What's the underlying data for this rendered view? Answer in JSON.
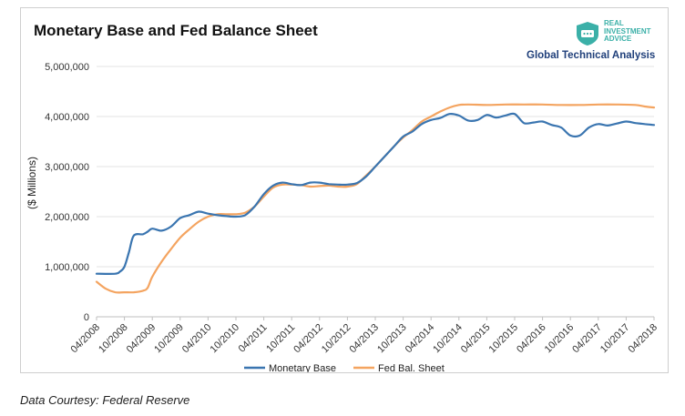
{
  "logo": {
    "lines": [
      "REAL",
      "INVESTMENT",
      "ADVICE"
    ],
    "color": "#3bb0a8"
  },
  "tagline": "Global Technical Analysis",
  "caption": "Data Courtesy: Federal Reserve",
  "chart_data": {
    "type": "line",
    "title": "Monetary Base and Fed Balance Sheet",
    "ylabel": "($ Millions)",
    "xlabel": "",
    "ylim": [
      0,
      5000000
    ],
    "yticks": [
      0,
      1000000,
      2000000,
      3000000,
      4000000,
      5000000
    ],
    "ytick_labels": [
      "0",
      "1,000,000",
      "2,000,000",
      "3,000,000",
      "4,000,000",
      "5,000,000"
    ],
    "xlim": [
      "2008-04",
      "2018-04"
    ],
    "xticks": [
      "2008-04",
      "2008-10",
      "2009-04",
      "2009-10",
      "2010-04",
      "2010-10",
      "2011-04",
      "2011-10",
      "2012-04",
      "2012-10",
      "2013-04",
      "2013-10",
      "2014-04",
      "2014-10",
      "2015-04",
      "2015-10",
      "2016-04",
      "2016-10",
      "2017-04",
      "2017-10",
      "2018-04"
    ],
    "xtick_labels": [
      "04/2008",
      "10/2008",
      "04/2009",
      "10/2009",
      "04/2010",
      "10/2010",
      "04/2011",
      "10/2011",
      "04/2012",
      "10/2012",
      "04/2013",
      "10/2013",
      "04/2014",
      "10/2014",
      "04/2015",
      "10/2015",
      "04/2016",
      "10/2016",
      "04/2017",
      "10/2017",
      "04/2018"
    ],
    "grid": true,
    "legend_position": "bottom",
    "series": [
      {
        "name": "Monetary Base",
        "color": "#3a75b0",
        "points": [
          [
            "2008-04",
            860000
          ],
          [
            "2008-08",
            860000
          ],
          [
            "2008-09",
            900000
          ],
          [
            "2008-10",
            1000000
          ],
          [
            "2008-11",
            1300000
          ],
          [
            "2008-12",
            1620000
          ],
          [
            "2009-02",
            1650000
          ],
          [
            "2009-03",
            1700000
          ],
          [
            "2009-04",
            1760000
          ],
          [
            "2009-06",
            1720000
          ],
          [
            "2009-08",
            1800000
          ],
          [
            "2009-10",
            1970000
          ],
          [
            "2009-12",
            2030000
          ],
          [
            "2010-02",
            2100000
          ],
          [
            "2010-04",
            2060000
          ],
          [
            "2010-06",
            2030000
          ],
          [
            "2010-08",
            2010000
          ],
          [
            "2010-10",
            2000000
          ],
          [
            "2010-12",
            2030000
          ],
          [
            "2011-02",
            2200000
          ],
          [
            "2011-04",
            2450000
          ],
          [
            "2011-06",
            2620000
          ],
          [
            "2011-08",
            2680000
          ],
          [
            "2011-10",
            2650000
          ],
          [
            "2011-12",
            2630000
          ],
          [
            "2012-02",
            2680000
          ],
          [
            "2012-04",
            2680000
          ],
          [
            "2012-06",
            2650000
          ],
          [
            "2012-08",
            2640000
          ],
          [
            "2012-10",
            2640000
          ],
          [
            "2012-12",
            2670000
          ],
          [
            "2013-02",
            2800000
          ],
          [
            "2013-04",
            3000000
          ],
          [
            "2013-06",
            3200000
          ],
          [
            "2013-08",
            3400000
          ],
          [
            "2013-10",
            3600000
          ],
          [
            "2013-12",
            3700000
          ],
          [
            "2014-02",
            3850000
          ],
          [
            "2014-04",
            3930000
          ],
          [
            "2014-06",
            3970000
          ],
          [
            "2014-08",
            4050000
          ],
          [
            "2014-10",
            4020000
          ],
          [
            "2014-12",
            3920000
          ],
          [
            "2015-02",
            3930000
          ],
          [
            "2015-04",
            4030000
          ],
          [
            "2015-06",
            3980000
          ],
          [
            "2015-08",
            4020000
          ],
          [
            "2015-10",
            4050000
          ],
          [
            "2015-12",
            3870000
          ],
          [
            "2016-02",
            3880000
          ],
          [
            "2016-04",
            3900000
          ],
          [
            "2016-06",
            3830000
          ],
          [
            "2016-08",
            3780000
          ],
          [
            "2016-10",
            3620000
          ],
          [
            "2016-12",
            3620000
          ],
          [
            "2017-02",
            3780000
          ],
          [
            "2017-04",
            3850000
          ],
          [
            "2017-06",
            3820000
          ],
          [
            "2017-08",
            3860000
          ],
          [
            "2017-10",
            3900000
          ],
          [
            "2017-12",
            3870000
          ],
          [
            "2018-02",
            3850000
          ],
          [
            "2018-04",
            3830000
          ]
        ]
      },
      {
        "name": "Fed Bal. Sheet",
        "color": "#f4a460",
        "points": [
          [
            "2008-04",
            700000
          ],
          [
            "2008-06",
            560000
          ],
          [
            "2008-08",
            490000
          ],
          [
            "2008-10",
            490000
          ],
          [
            "2008-12",
            490000
          ],
          [
            "2009-02",
            520000
          ],
          [
            "2009-03",
            580000
          ],
          [
            "2009-04",
            800000
          ],
          [
            "2009-06",
            1100000
          ],
          [
            "2009-08",
            1350000
          ],
          [
            "2009-10",
            1580000
          ],
          [
            "2009-12",
            1750000
          ],
          [
            "2010-02",
            1900000
          ],
          [
            "2010-04",
            2000000
          ],
          [
            "2010-06",
            2050000
          ],
          [
            "2010-08",
            2050000
          ],
          [
            "2010-10",
            2050000
          ],
          [
            "2010-12",
            2080000
          ],
          [
            "2011-02",
            2200000
          ],
          [
            "2011-04",
            2400000
          ],
          [
            "2011-06",
            2580000
          ],
          [
            "2011-08",
            2640000
          ],
          [
            "2011-10",
            2640000
          ],
          [
            "2011-12",
            2630000
          ],
          [
            "2012-02",
            2600000
          ],
          [
            "2012-04",
            2610000
          ],
          [
            "2012-06",
            2620000
          ],
          [
            "2012-08",
            2600000
          ],
          [
            "2012-10",
            2600000
          ],
          [
            "2012-12",
            2650000
          ],
          [
            "2013-02",
            2820000
          ],
          [
            "2013-04",
            3000000
          ],
          [
            "2013-06",
            3200000
          ],
          [
            "2013-08",
            3400000
          ],
          [
            "2013-10",
            3580000
          ],
          [
            "2013-12",
            3730000
          ],
          [
            "2014-02",
            3900000
          ],
          [
            "2014-04",
            4000000
          ],
          [
            "2014-06",
            4100000
          ],
          [
            "2014-08",
            4180000
          ],
          [
            "2014-10",
            4230000
          ],
          [
            "2014-12",
            4240000
          ],
          [
            "2015-04",
            4230000
          ],
          [
            "2015-08",
            4240000
          ],
          [
            "2015-12",
            4240000
          ],
          [
            "2016-04",
            4240000
          ],
          [
            "2016-08",
            4230000
          ],
          [
            "2016-12",
            4230000
          ],
          [
            "2017-04",
            4240000
          ],
          [
            "2017-08",
            4240000
          ],
          [
            "2017-12",
            4230000
          ],
          [
            "2018-02",
            4200000
          ],
          [
            "2018-04",
            4180000
          ]
        ]
      }
    ]
  }
}
